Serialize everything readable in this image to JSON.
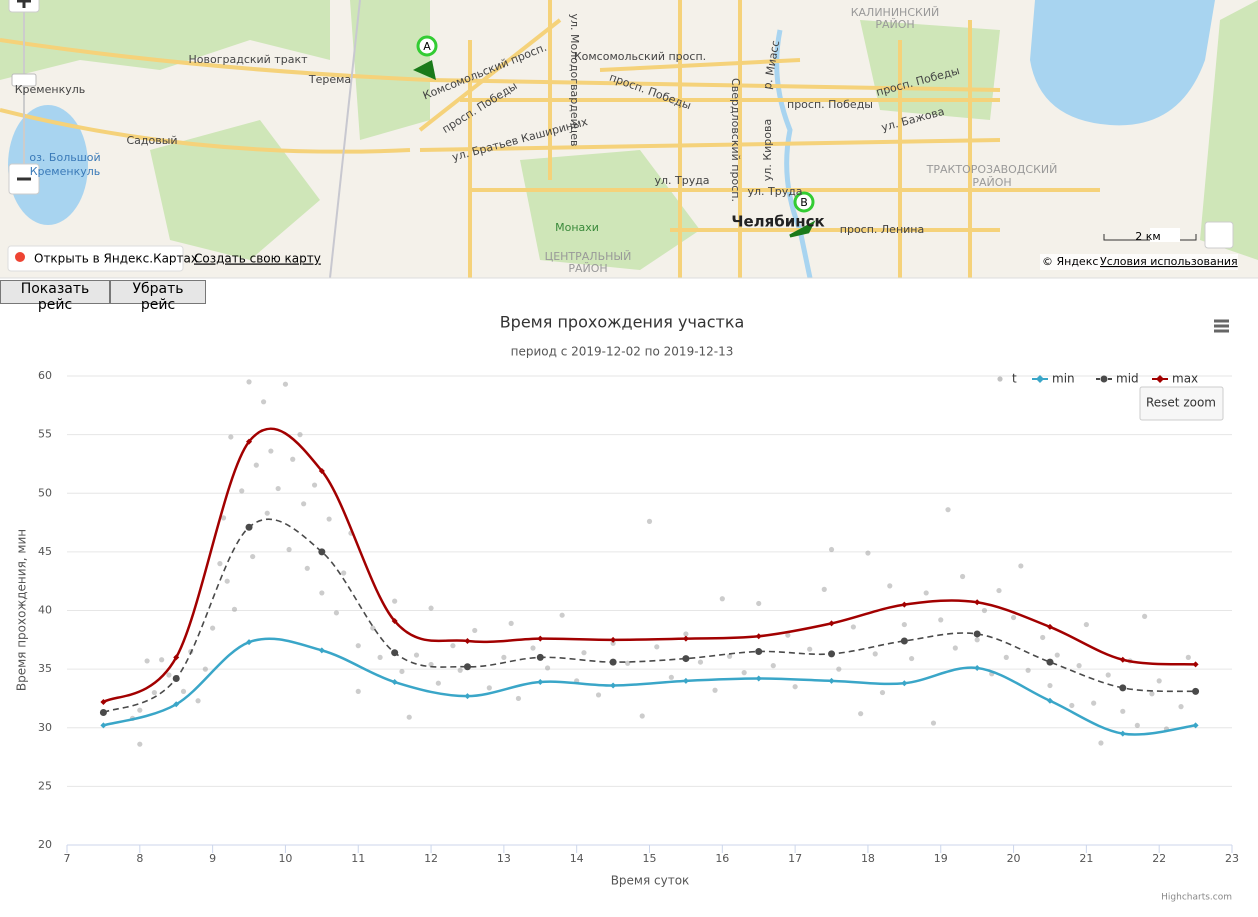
{
  "map": {
    "labels": [
      "Новоградский тракт",
      "Терема",
      "Кременкуль",
      "Садовый",
      "оз. Большой",
      "Кременкуль",
      "Комсомольский просп.",
      "Комсомольский просп.",
      "просп. Победы",
      "просп. Победы",
      "просп. Победы",
      "просп. Победы",
      "ул. Братьев Кашириных",
      "ул. Труда",
      "Монахи",
      "ЦЕНТРАЛЬНЫЙ",
      "РАЙОН",
      "Челябинск",
      "просп. Ленина",
      "КАЛИНИНСКИЙ",
      "РАЙОН",
      "ТРАКТОРОЗАВОДСКИЙ",
      "РАЙОН",
      "ул. Бажова",
      "ул. Кирова",
      "Свердловский просп.",
      "ул. Молодогвардейцев",
      "р. Миасс",
      "ул. Труда"
    ],
    "markers": [
      "A",
      "B"
    ],
    "open_link": "Открыть в Яндекс.Картах",
    "create_link": "Создать свою карту",
    "scale": "2 км",
    "copyright": "© Яндекс",
    "terms": "Условия использования"
  },
  "buttons": [
    "Показать рейс",
    "Убрать рейс"
  ],
  "chart_data": {
    "type": "line",
    "title": "Время прохождения участка",
    "subtitle": "период с 2019-12-02 по 2019-12-13",
    "x_label": "Время суток",
    "y_label": "Время прохождения, мин",
    "reset_zoom": "Reset zoom",
    "credits": "Highcharts.com",
    "xlim": [
      7,
      23
    ],
    "xticks": [
      7,
      8,
      9,
      10,
      11,
      12,
      13,
      14,
      15,
      16,
      17,
      18,
      19,
      20,
      21,
      22,
      23
    ],
    "ylim": [
      20,
      60
    ],
    "yticks": [
      20,
      25,
      30,
      35,
      40,
      45,
      50,
      55,
      60
    ],
    "grid": true,
    "legend": "top-right",
    "series": [
      {
        "name": "t",
        "type": "scatter",
        "color": "#9a9a9a",
        "x": [
          7.9,
          8.0,
          8.0,
          8.1,
          8.2,
          8.3,
          8.4,
          8.6,
          8.7,
          8.8,
          8.9,
          9.0,
          9.1,
          9.15,
          9.2,
          9.25,
          9.3,
          9.4,
          9.5,
          9.55,
          9.6,
          9.7,
          9.75,
          9.8,
          9.9,
          10.0,
          10.05,
          10.1,
          10.2,
          10.25,
          10.3,
          10.4,
          10.5,
          10.6,
          10.7,
          10.8,
          10.9,
          11.0,
          11.0,
          11.2,
          11.3,
          11.5,
          11.6,
          11.7,
          11.8,
          12.0,
          12.0,
          12.1,
          12.3,
          12.4,
          12.6,
          12.8,
          13.0,
          13.1,
          13.2,
          13.4,
          13.6,
          13.8,
          14.0,
          14.1,
          14.3,
          14.5,
          14.7,
          14.9,
          15.0,
          15.1,
          15.3,
          15.5,
          15.7,
          15.9,
          16.0,
          16.1,
          16.3,
          16.5,
          16.7,
          16.9,
          17.0,
          17.2,
          17.4,
          17.5,
          17.6,
          17.8,
          17.9,
          18.0,
          18.1,
          18.2,
          18.3,
          18.5,
          18.6,
          18.8,
          18.9,
          19.0,
          19.1,
          19.2,
          19.3,
          19.5,
          19.6,
          19.7,
          19.8,
          19.9,
          20.0,
          20.1,
          20.2,
          20.4,
          20.5,
          20.6,
          20.8,
          20.9,
          21.0,
          21.1,
          21.2,
          21.3,
          21.5,
          21.6,
          21.7,
          21.8,
          21.9,
          22.0,
          22.1,
          22.3,
          22.4
        ],
        "values": [
          30.8,
          28.6,
          31.5,
          35.7,
          33.0,
          35.8,
          34.5,
          33.1,
          36.5,
          32.3,
          35.0,
          38.5,
          44.0,
          47.9,
          42.5,
          54.8,
          40.1,
          50.2,
          59.5,
          44.6,
          52.4,
          57.8,
          48.3,
          53.6,
          50.4,
          59.3,
          45.2,
          52.9,
          55.0,
          49.1,
          43.6,
          50.7,
          41.5,
          47.8,
          39.8,
          43.2,
          46.6,
          37.0,
          33.1,
          38.5,
          36.0,
          40.8,
          34.8,
          30.9,
          36.2,
          35.4,
          40.2,
          33.8,
          37.0,
          34.9,
          38.3,
          33.4,
          36.0,
          38.9,
          32.5,
          36.8,
          35.1,
          39.6,
          34.0,
          36.4,
          32.8,
          37.2,
          35.5,
          31.0,
          47.6,
          36.9,
          34.3,
          38.0,
          35.6,
          33.2,
          41.0,
          36.1,
          34.7,
          40.6,
          35.3,
          37.9,
          33.5,
          36.7,
          41.8,
          45.2,
          35.0,
          38.6,
          31.2,
          44.9,
          36.3,
          33.0,
          42.1,
          38.8,
          35.9,
          41.5,
          30.4,
          39.2,
          48.6,
          36.8,
          42.9,
          37.5,
          40.0,
          34.6,
          41.7,
          36.0,
          39.4,
          43.8,
          34.9,
          37.7,
          33.6,
          36.2,
          31.9,
          35.3,
          38.8,
          32.1,
          28.7,
          34.5,
          31.4,
          35.7,
          30.2,
          39.5,
          32.9,
          34.0,
          29.9,
          31.8,
          36.0
        ]
      },
      {
        "name": "min",
        "type": "spline",
        "color": "#3aa6c8",
        "x": [
          7.5,
          8.5,
          9.5,
          10.5,
          11.5,
          12.5,
          13.5,
          14.5,
          15.5,
          16.5,
          17.5,
          18.5,
          19.5,
          20.5,
          21.5,
          22.5
        ],
        "values": [
          30.2,
          32.0,
          37.3,
          36.6,
          33.9,
          32.7,
          33.9,
          33.6,
          34.0,
          34.2,
          34.0,
          33.8,
          35.1,
          32.3,
          29.5,
          30.2
        ]
      },
      {
        "name": "mid",
        "type": "spline",
        "dashed": true,
        "color": "#4a4a4a",
        "x": [
          7.5,
          8.5,
          9.5,
          10.5,
          11.5,
          12.5,
          13.5,
          14.5,
          15.5,
          16.5,
          17.5,
          18.5,
          19.5,
          20.5,
          21.5,
          22.5
        ],
        "values": [
          31.3,
          34.2,
          47.1,
          45.0,
          36.4,
          35.2,
          36.0,
          35.6,
          35.9,
          36.5,
          36.3,
          37.4,
          38.0,
          35.6,
          33.4,
          33.1
        ]
      },
      {
        "name": "max",
        "type": "spline",
        "color": "#a20000",
        "x": [
          7.5,
          8.5,
          9.5,
          10.5,
          11.5,
          12.5,
          13.5,
          14.5,
          15.5,
          16.5,
          17.5,
          18.5,
          19.5,
          20.5,
          21.5,
          22.5
        ],
        "values": [
          32.2,
          36.0,
          54.4,
          51.9,
          39.1,
          37.4,
          37.6,
          37.5,
          37.6,
          37.8,
          38.9,
          40.5,
          40.7,
          38.6,
          35.8,
          35.4
        ]
      }
    ]
  }
}
